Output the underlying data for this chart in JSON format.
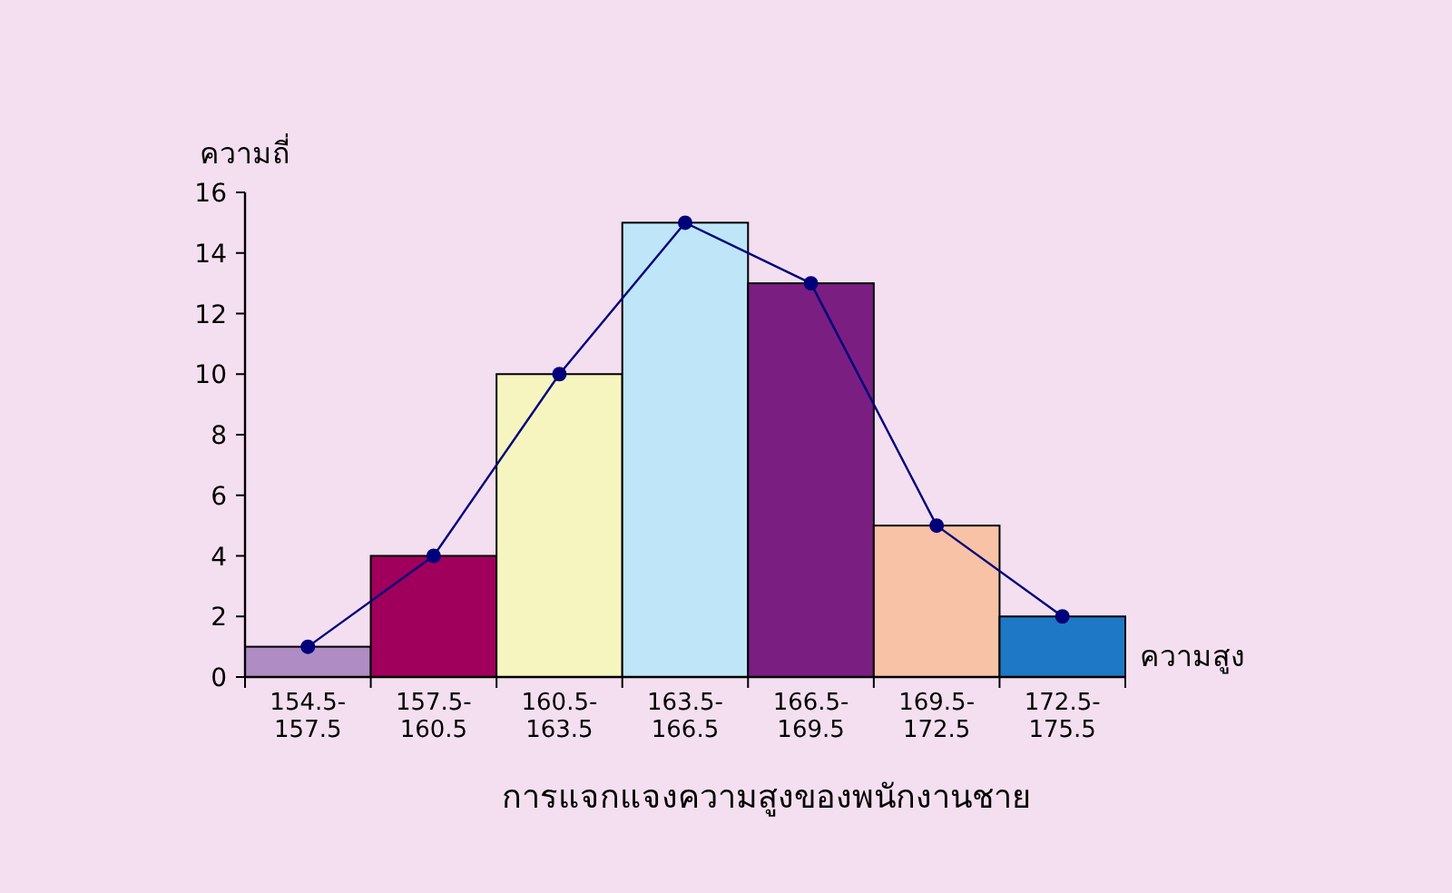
{
  "chart_data": {
    "type": "bar",
    "title": "การแจกแจงความสูงของพนักงานชาย",
    "xlabel": "ความสูง",
    "ylabel": "ความถี่",
    "categories": [
      "154.5-157.5",
      "157.5-160.5",
      "160.5-163.5",
      "163.5-166.5",
      "166.5-169.5",
      "169.5-172.5",
      "172.5-175.5"
    ],
    "ylim": [
      0,
      16
    ],
    "yticks": [
      0,
      2,
      4,
      6,
      8,
      10,
      12,
      14,
      16
    ],
    "grid": false,
    "marker": "circle",
    "series": [
      {
        "colors": [
          "#b08cc4",
          "#a0005c",
          "#f6f5c0",
          "#bee6f8",
          "#7a1e82",
          "#f8c2a6",
          "#1e78c6"
        ],
        "values": [
          1,
          4,
          10,
          15,
          13,
          5,
          2
        ]
      },
      {
        "type": "line",
        "color": "#00007a",
        "values": [
          1,
          4,
          10,
          15,
          13,
          5,
          2
        ]
      }
    ]
  }
}
